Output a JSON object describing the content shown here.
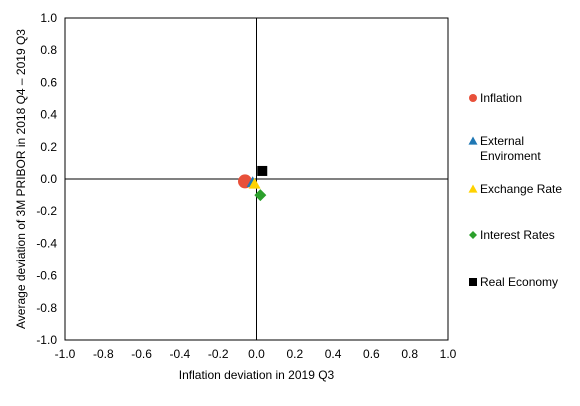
{
  "chart_data": {
    "type": "scatter",
    "xlabel": "Inflation deviation in 2019 Q3",
    "ylabel": "Average deviation of 3M PRIBOR in 2018 Q4 – 2019 Q3",
    "xlim": [
      -1.0,
      1.0
    ],
    "ylim": [
      -1.0,
      1.0
    ],
    "x_ticks": [
      "-1.0",
      "-0.8",
      "-0.6",
      "-0.4",
      "-0.2",
      "0.0",
      "0.2",
      "0.4",
      "0.6",
      "0.8",
      "1.0"
    ],
    "y_ticks": [
      "1.0",
      "0.8",
      "0.6",
      "0.4",
      "0.2",
      "0.0",
      "-0.2",
      "-0.4",
      "-0.6",
      "-0.8",
      "-1.0"
    ],
    "grid": false,
    "legend_position": "right",
    "series": [
      {
        "name": "Inflation",
        "marker": "circle",
        "color": "#e8503a",
        "x": -0.06,
        "y": -0.015
      },
      {
        "name": "External\nEnviroment",
        "marker": "triangle",
        "color": "#1f77b4",
        "x": -0.02,
        "y": -0.02
      },
      {
        "name": "Exchange Rate",
        "marker": "triangle",
        "color": "#ffd200",
        "x": -0.01,
        "y": -0.03
      },
      {
        "name": "Interest Rates",
        "marker": "diamond",
        "color": "#2ca02c",
        "x": 0.02,
        "y": -0.1
      },
      {
        "name": "Real Economy",
        "marker": "square",
        "color": "#000000",
        "x": 0.03,
        "y": 0.05
      }
    ]
  }
}
